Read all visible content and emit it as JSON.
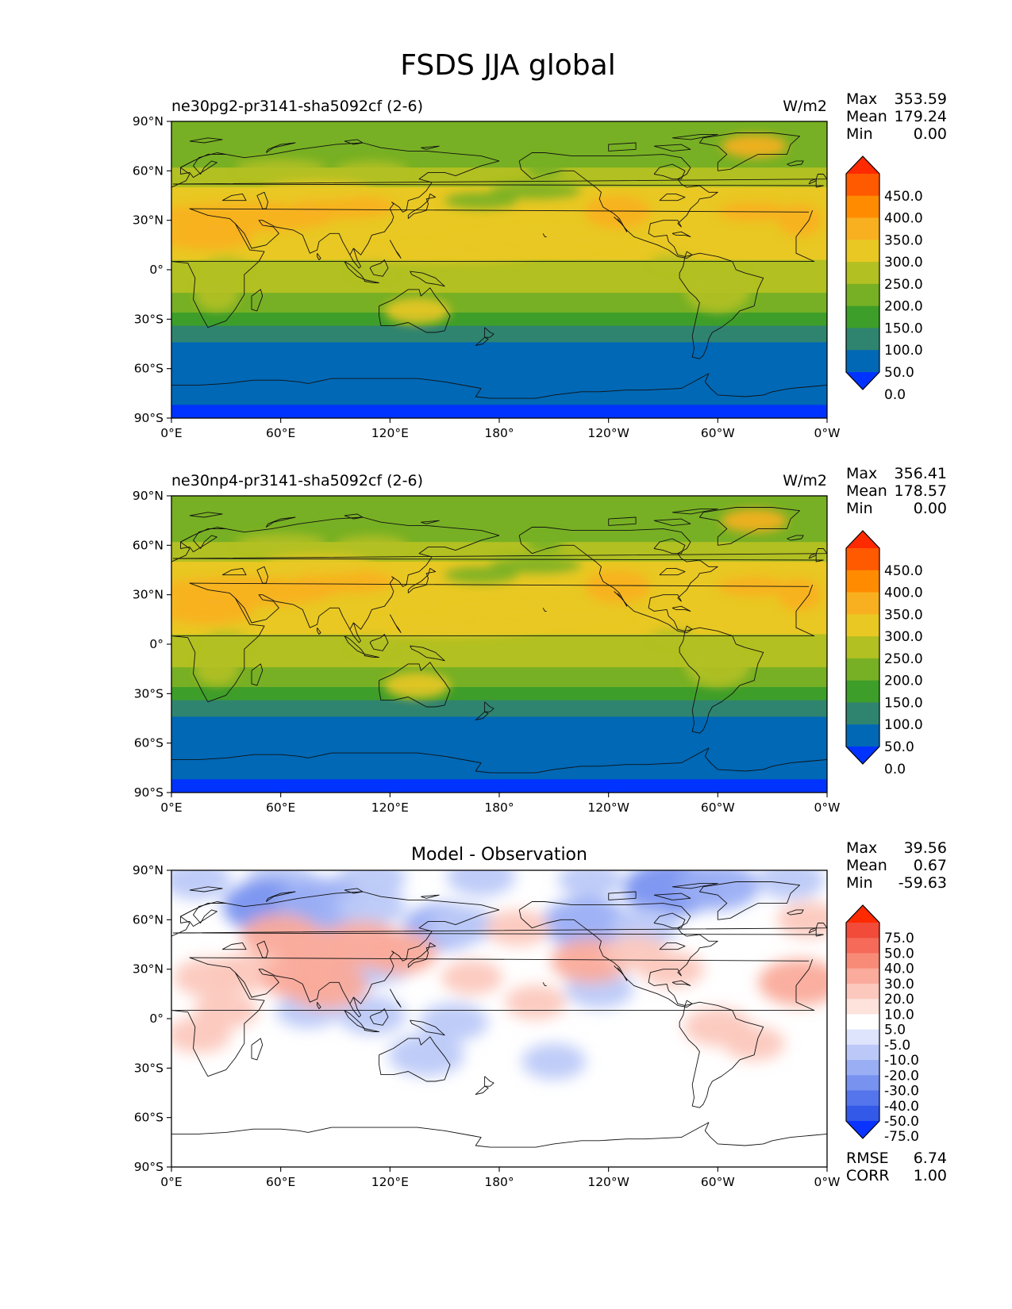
{
  "figure_title": "FSDS JJA global",
  "chart_data": [
    {
      "type": "heatmap",
      "title": "ne30pg2-pr3141-sha5092cf (2-6)",
      "units": "W/m2",
      "xlabel": "",
      "ylabel": "",
      "x_ticks": [
        "0°E",
        "60°E",
        "120°E",
        "180°",
        "120°W",
        "60°W",
        "0°W"
      ],
      "y_ticks": [
        "90°N",
        "60°N",
        "30°N",
        "0°",
        "30°S",
        "60°S",
        "90°S"
      ],
      "stats": [
        {
          "label": "Max",
          "value": "353.59"
        },
        {
          "label": "Mean",
          "value": "179.24"
        },
        {
          "label": "Min",
          "value": "0.00"
        }
      ],
      "colorbar": {
        "levels": [
          "450.0",
          "400.0",
          "350.0",
          "300.0",
          "250.0",
          "200.0",
          "150.0",
          "100.0",
          "50.0",
          "0.0"
        ],
        "colors": [
          "#ff2a00",
          "#ff5a00",
          "#ff8c00",
          "#f8b020",
          "#e9c823",
          "#b2c021",
          "#77b024",
          "#3e9e2a",
          "#2f8470",
          "#0068b5",
          "#0033ff"
        ]
      },
      "latitude_bands_sw": [
        {
          "lat_from": 90,
          "lat_to": 78,
          "value": 150
        },
        {
          "lat_from": 78,
          "lat_to": 62,
          "value": 175
        },
        {
          "lat_from": 62,
          "lat_to": 50,
          "value": 215
        },
        {
          "lat_from": 50,
          "lat_to": 38,
          "value": 255
        },
        {
          "lat_from": 38,
          "lat_to": 20,
          "value": 290
        },
        {
          "lat_from": 20,
          "lat_to": 6,
          "value": 270
        },
        {
          "lat_from": 6,
          "lat_to": -4,
          "value": 240
        },
        {
          "lat_from": -4,
          "lat_to": -14,
          "value": 215
        },
        {
          "lat_from": -14,
          "lat_to": -26,
          "value": 175
        },
        {
          "lat_from": -26,
          "lat_to": -34,
          "value": 140
        },
        {
          "lat_from": -34,
          "lat_to": -44,
          "value": 80
        },
        {
          "lat_from": -44,
          "lat_to": -82,
          "value": 20
        },
        {
          "lat_from": -82,
          "lat_to": -90,
          "value": -10
        }
      ]
    },
    {
      "type": "heatmap",
      "title": "ne30np4-pr3141-sha5092cf (2-6)",
      "units": "W/m2",
      "xlabel": "",
      "ylabel": "",
      "x_ticks": [
        "0°E",
        "60°E",
        "120°E",
        "180°",
        "120°W",
        "60°W",
        "0°W"
      ],
      "y_ticks": [
        "90°N",
        "60°N",
        "30°N",
        "0°",
        "30°S",
        "60°S",
        "90°S"
      ],
      "stats": [
        {
          "label": "Max",
          "value": "356.41"
        },
        {
          "label": "Mean",
          "value": "178.57"
        },
        {
          "label": "Min",
          "value": "0.00"
        }
      ],
      "colorbar": {
        "levels": [
          "450.0",
          "400.0",
          "350.0",
          "300.0",
          "250.0",
          "200.0",
          "150.0",
          "100.0",
          "50.0",
          "0.0"
        ],
        "colors": [
          "#ff2a00",
          "#ff5a00",
          "#ff8c00",
          "#f8b020",
          "#e9c823",
          "#b2c021",
          "#77b024",
          "#3e9e2a",
          "#2f8470",
          "#0068b5",
          "#0033ff"
        ]
      },
      "latitude_bands_sw": [
        {
          "lat_from": 90,
          "lat_to": 76,
          "value": 175
        },
        {
          "lat_from": 76,
          "lat_to": 62,
          "value": 190
        },
        {
          "lat_from": 62,
          "lat_to": 50,
          "value": 215
        },
        {
          "lat_from": 50,
          "lat_to": 38,
          "value": 255
        },
        {
          "lat_from": 38,
          "lat_to": 20,
          "value": 290
        },
        {
          "lat_from": 20,
          "lat_to": 6,
          "value": 270
        },
        {
          "lat_from": 6,
          "lat_to": -4,
          "value": 240
        },
        {
          "lat_from": -4,
          "lat_to": -14,
          "value": 215
        },
        {
          "lat_from": -14,
          "lat_to": -26,
          "value": 175
        },
        {
          "lat_from": -26,
          "lat_to": -34,
          "value": 140
        },
        {
          "lat_from": -34,
          "lat_to": -44,
          "value": 80
        },
        {
          "lat_from": -44,
          "lat_to": -82,
          "value": 20
        },
        {
          "lat_from": -82,
          "lat_to": -90,
          "value": -10
        }
      ]
    },
    {
      "type": "heatmap",
      "title": "Model - Observation",
      "units": "",
      "xlabel": "",
      "ylabel": "",
      "x_ticks": [
        "0°E",
        "60°E",
        "120°E",
        "180°",
        "120°W",
        "60°W",
        "0°W"
      ],
      "y_ticks": [
        "90°N",
        "60°N",
        "30°N",
        "0°",
        "30°S",
        "60°S",
        "90°S"
      ],
      "stats": [
        {
          "label": "Max",
          "value": "39.56"
        },
        {
          "label": "Mean",
          "value": "0.67"
        },
        {
          "label": "Min",
          "value": "-59.63"
        }
      ],
      "bottom_stats": [
        {
          "label": "RMSE",
          "value": "6.74"
        },
        {
          "label": "CORR",
          "value": "1.00"
        }
      ],
      "colorbar": {
        "levels": [
          "75.0",
          "50.0",
          "40.0",
          "30.0",
          "20.0",
          "10.0",
          "5.0",
          "-5.0",
          "-10.0",
          "-20.0",
          "-30.0",
          "-40.0",
          "-50.0",
          "-75.0"
        ],
        "colors": [
          "#ff2a00",
          "#f24b3a",
          "#f56a58",
          "#f88b78",
          "#faab9b",
          "#fcc8bd",
          "#fde3dc",
          "#ffffff",
          "#dde4fb",
          "#bcc9f8",
          "#9aaef4",
          "#7892f0",
          "#5575ec",
          "#3359e9",
          "#0a33ff"
        ]
      },
      "anomaly_blobs": [
        {
          "lon": 14,
          "lat": 84,
          "value": -15
        },
        {
          "lon": 60,
          "lat": 84,
          "value": -15
        },
        {
          "lon": 110,
          "lat": 85,
          "value": -15
        },
        {
          "lon": 170,
          "lat": 86,
          "value": -15
        },
        {
          "lon": 230,
          "lat": 84,
          "value": -12
        },
        {
          "lon": 275,
          "lat": 79,
          "value": -35
        },
        {
          "lon": 300,
          "lat": 80,
          "value": -25
        },
        {
          "lon": 340,
          "lat": 84,
          "value": -15
        },
        {
          "lon": 55,
          "lat": 68,
          "value": -35
        },
        {
          "lon": 82,
          "lat": 70,
          "value": -30
        },
        {
          "lon": 110,
          "lat": 68,
          "value": -15
        },
        {
          "lon": 150,
          "lat": 56,
          "value": -25
        },
        {
          "lon": 160,
          "lat": 57,
          "value": -15
        },
        {
          "lon": 228,
          "lat": 58,
          "value": -30
        },
        {
          "lon": 260,
          "lat": 56,
          "value": -15
        },
        {
          "lon": 95,
          "lat": 30,
          "value": -25
        },
        {
          "lon": 115,
          "lat": 32,
          "value": -12
        },
        {
          "lon": 110,
          "lat": 2,
          "value": -15
        },
        {
          "lon": 155,
          "lat": -2,
          "value": -15
        },
        {
          "lon": 140,
          "lat": -22,
          "value": -20
        },
        {
          "lon": 210,
          "lat": -26,
          "value": -12
        },
        {
          "lon": 235,
          "lat": 18,
          "value": -15
        },
        {
          "lon": 75,
          "lat": 5,
          "value": -12
        },
        {
          "lon": 60,
          "lat": 50,
          "value": 22
        },
        {
          "lon": 80,
          "lat": 42,
          "value": 20
        },
        {
          "lon": 105,
          "lat": 45,
          "value": 25
        },
        {
          "lon": 125,
          "lat": 40,
          "value": 20
        },
        {
          "lon": 20,
          "lat": 25,
          "value": 15
        },
        {
          "lon": 40,
          "lat": 28,
          "value": 15
        },
        {
          "lon": 70,
          "lat": 25,
          "value": 20
        },
        {
          "lon": 85,
          "lat": 20,
          "value": 25
        },
        {
          "lon": 30,
          "lat": 5,
          "value": 12
        },
        {
          "lon": 15,
          "lat": -10,
          "value": 12
        },
        {
          "lon": 230,
          "lat": 35,
          "value": 22
        },
        {
          "lon": 255,
          "lat": 40,
          "value": 12
        },
        {
          "lon": 275,
          "lat": 30,
          "value": 12
        },
        {
          "lon": 345,
          "lat": 22,
          "value": 25
        },
        {
          "lon": 300,
          "lat": -5,
          "value": 15
        },
        {
          "lon": 320,
          "lat": -15,
          "value": 10
        },
        {
          "lon": 190,
          "lat": 55,
          "value": 12
        },
        {
          "lon": 165,
          "lat": 25,
          "value": 10
        },
        {
          "lon": 200,
          "lat": 10,
          "value": 10
        },
        {
          "lon": 350,
          "lat": 60,
          "value": 12
        }
      ]
    }
  ]
}
